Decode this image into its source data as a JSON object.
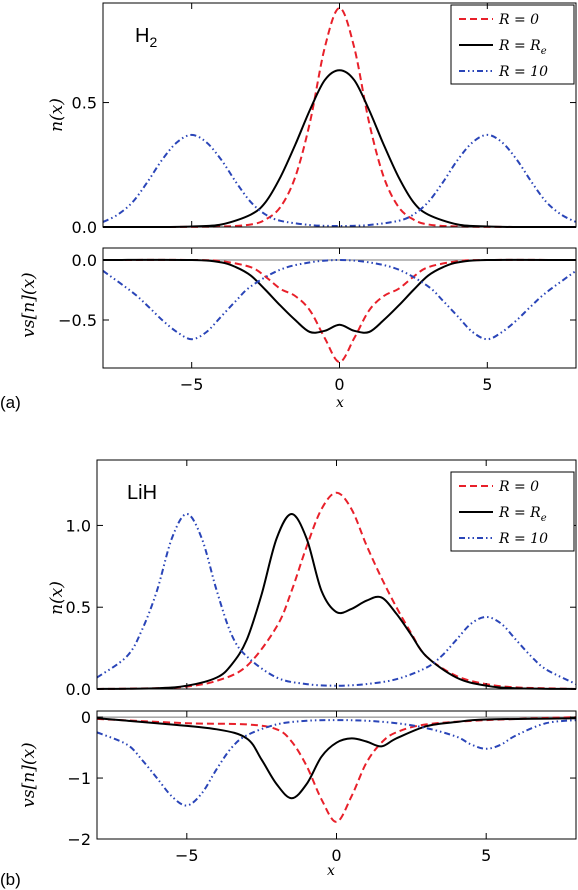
{
  "panels": [
    {
      "tag": "(a)",
      "molecule": "H",
      "molecule_sub": "2",
      "x_label": "x",
      "x_ticks": [
        "−5",
        "0",
        "5"
      ],
      "x_tick_values": [
        -5,
        0,
        5
      ],
      "legend": [
        {
          "label": "R = 0",
          "color": "#e8202a",
          "dash": "dashed"
        },
        {
          "label": "R = R",
          "sub": "e",
          "color": "#000000",
          "dash": "solid"
        },
        {
          "label": "R = 10",
          "color": "#2a45b8",
          "dash": "dashdotdot"
        }
      ]
    },
    {
      "tag": "(b)",
      "molecule": "LiH",
      "molecule_sub": "",
      "x_label": "x",
      "x_ticks": [
        "−5",
        "0",
        "5"
      ],
      "x_tick_values": [
        -5,
        0,
        5
      ],
      "legend": [
        {
          "label": "R = 0",
          "color": "#e8202a",
          "dash": "dashed"
        },
        {
          "label": "R = R",
          "sub": "e",
          "color": "#000000",
          "dash": "solid"
        },
        {
          "label": "R = 10",
          "color": "#2a45b8",
          "dash": "dashdotdot"
        }
      ]
    }
  ],
  "chart_data": [
    {
      "type": "line",
      "panel": "(a) top",
      "ylabel": "n(x)",
      "xlim": [
        -8,
        8
      ],
      "ylim": [
        0,
        0.9
      ],
      "y_ticks": [
        "0.0",
        "0.5"
      ],
      "y_tick_values": [
        0,
        0.5
      ],
      "series": [
        {
          "name": "R = 0",
          "x": [
            -8,
            -6,
            -4,
            -3,
            -2.5,
            -2,
            -1.5,
            -1,
            -0.5,
            0,
            0.5,
            1,
            1.5,
            2,
            2.5,
            3,
            4,
            6,
            8
          ],
          "y": [
            0,
            0,
            0.002,
            0.01,
            0.03,
            0.08,
            0.2,
            0.42,
            0.72,
            0.88,
            0.72,
            0.42,
            0.2,
            0.08,
            0.03,
            0.01,
            0.002,
            0,
            0
          ]
        },
        {
          "name": "R = Re",
          "x": [
            -8,
            -6,
            -5,
            -4,
            -3,
            -2.5,
            -2,
            -1.5,
            -1,
            -0.5,
            0,
            0.5,
            1,
            1.5,
            2,
            2.5,
            3,
            4,
            5,
            6,
            8
          ],
          "y": [
            0,
            0,
            0.002,
            0.01,
            0.05,
            0.1,
            0.2,
            0.33,
            0.47,
            0.59,
            0.63,
            0.59,
            0.47,
            0.33,
            0.2,
            0.1,
            0.05,
            0.01,
            0.002,
            0,
            0
          ]
        },
        {
          "name": "R = 10",
          "x": [
            -8,
            -7.5,
            -7,
            -6.5,
            -6,
            -5.5,
            -5,
            -4.5,
            -4,
            -3.5,
            -3,
            -2.5,
            -2,
            -1,
            0,
            1,
            2,
            2.5,
            3,
            3.5,
            4,
            4.5,
            5,
            5.5,
            6,
            6.5,
            7,
            7.5,
            8
          ],
          "y": [
            0.02,
            0.05,
            0.1,
            0.18,
            0.27,
            0.34,
            0.37,
            0.34,
            0.27,
            0.18,
            0.1,
            0.05,
            0.025,
            0.008,
            0.004,
            0.008,
            0.025,
            0.05,
            0.1,
            0.18,
            0.27,
            0.34,
            0.37,
            0.34,
            0.27,
            0.18,
            0.1,
            0.05,
            0.02
          ]
        }
      ]
    },
    {
      "type": "line",
      "panel": "(a) bottom",
      "ylabel": "vs[n](x)",
      "xlim": [
        -8,
        8
      ],
      "ylim": [
        -0.9,
        0.1
      ],
      "y_ticks": [
        "0.0",
        "−0.5"
      ],
      "y_tick_values": [
        0,
        -0.5
      ],
      "series": [
        {
          "name": "R = 0",
          "x": [
            -8,
            -5,
            -4,
            -3,
            -2.5,
            -2,
            -1.5,
            -1,
            -0.5,
            0,
            0.5,
            1,
            1.5,
            2,
            2.5,
            3,
            4,
            5,
            8
          ],
          "y": [
            0,
            0,
            -0.01,
            -0.06,
            -0.14,
            -0.24,
            -0.3,
            -0.42,
            -0.65,
            -0.85,
            -0.65,
            -0.42,
            -0.3,
            -0.24,
            -0.14,
            -0.06,
            -0.01,
            0,
            0
          ]
        },
        {
          "name": "R = Re",
          "x": [
            -8,
            -5,
            -4,
            -3.5,
            -3,
            -2.5,
            -2,
            -1.5,
            -1,
            -0.5,
            0,
            0.5,
            1,
            1.5,
            2,
            2.5,
            3,
            3.5,
            4,
            5,
            8
          ],
          "y": [
            0,
            0,
            -0.02,
            -0.06,
            -0.13,
            -0.25,
            -0.38,
            -0.5,
            -0.6,
            -0.59,
            -0.54,
            -0.59,
            -0.6,
            -0.5,
            -0.38,
            -0.25,
            -0.13,
            -0.06,
            -0.02,
            0,
            0
          ]
        },
        {
          "name": "R = 10",
          "x": [
            -8,
            -7,
            -6.5,
            -6,
            -5.5,
            -5,
            -4.5,
            -4,
            -3.5,
            -3,
            -2,
            -1,
            0,
            1,
            2,
            3,
            3.5,
            4,
            4.5,
            5,
            5.5,
            6,
            6.5,
            7,
            8
          ],
          "y": [
            -0.09,
            -0.27,
            -0.38,
            -0.5,
            -0.6,
            -0.66,
            -0.6,
            -0.47,
            -0.34,
            -0.22,
            -0.08,
            -0.02,
            0,
            -0.02,
            -0.08,
            -0.22,
            -0.34,
            -0.47,
            -0.6,
            -0.66,
            -0.6,
            -0.5,
            -0.38,
            -0.27,
            -0.09
          ]
        }
      ]
    },
    {
      "type": "line",
      "panel": "(b) top",
      "ylabel": "n(x)",
      "xlim": [
        -8,
        8
      ],
      "ylim": [
        0,
        1.4
      ],
      "y_ticks": [
        "0.0",
        "0.5",
        "1.0"
      ],
      "y_tick_values": [
        0,
        0.5,
        1.0
      ],
      "series": [
        {
          "name": "R = 0",
          "x": [
            -8,
            -6,
            -5,
            -4,
            -3,
            -2,
            -1.5,
            -1,
            -0.5,
            0,
            0.5,
            1,
            1.5,
            2,
            2.5,
            3,
            4,
            5,
            6,
            8
          ],
          "y": [
            0,
            0.005,
            0.015,
            0.05,
            0.14,
            0.38,
            0.6,
            0.87,
            1.1,
            1.2,
            1.1,
            0.88,
            0.68,
            0.5,
            0.34,
            0.2,
            0.08,
            0.03,
            0.01,
            0
          ]
        },
        {
          "name": "R = Re",
          "x": [
            -8,
            -6,
            -5,
            -4,
            -3.5,
            -3,
            -2.5,
            -2,
            -1.5,
            -1,
            -0.5,
            0,
            0.5,
            1,
            1.5,
            2,
            2.5,
            3,
            4,
            5,
            6,
            8
          ],
          "y": [
            0,
            0.005,
            0.02,
            0.07,
            0.15,
            0.3,
            0.58,
            0.92,
            1.07,
            0.92,
            0.6,
            0.47,
            0.49,
            0.54,
            0.56,
            0.46,
            0.33,
            0.2,
            0.07,
            0.02,
            0.005,
            0
          ]
        },
        {
          "name": "R = 10",
          "x": [
            -8,
            -7,
            -6.5,
            -6,
            -5.5,
            -5,
            -4.5,
            -4,
            -3.5,
            -3,
            -2,
            -1,
            0,
            1,
            2,
            3,
            3.5,
            4,
            4.5,
            5,
            5.5,
            6,
            6.5,
            7,
            8
          ],
          "y": [
            0.07,
            0.2,
            0.36,
            0.6,
            0.92,
            1.07,
            0.92,
            0.6,
            0.33,
            0.2,
            0.07,
            0.03,
            0.02,
            0.03,
            0.06,
            0.13,
            0.2,
            0.3,
            0.4,
            0.44,
            0.4,
            0.3,
            0.2,
            0.12,
            0.03
          ]
        }
      ]
    },
    {
      "type": "line",
      "panel": "(b) bottom",
      "ylabel": "vs[n](x)",
      "xlim": [
        -8,
        8
      ],
      "ylim": [
        -2,
        0.1
      ],
      "y_ticks": [
        "0",
        "−1",
        "−2"
      ],
      "y_tick_values": [
        0,
        -1,
        -2
      ],
      "series": [
        {
          "name": "R = 0",
          "x": [
            -8,
            -5,
            -3,
            -2,
            -1.5,
            -1,
            -0.5,
            0,
            0.5,
            1,
            1.5,
            2,
            3,
            5,
            8
          ],
          "y": [
            -0.03,
            -0.1,
            -0.12,
            -0.2,
            -0.4,
            -0.8,
            -1.35,
            -1.72,
            -1.3,
            -0.75,
            -0.42,
            -0.25,
            -0.12,
            -0.05,
            0
          ]
        },
        {
          "name": "R = Re",
          "x": [
            -8,
            -6,
            -4,
            -3,
            -2.5,
            -2,
            -1.5,
            -1,
            -0.5,
            0,
            0.5,
            1,
            1.5,
            2,
            3,
            4,
            5,
            8
          ],
          "y": [
            -0.02,
            -0.1,
            -0.2,
            -0.35,
            -0.7,
            -1.1,
            -1.33,
            -1.1,
            -0.65,
            -0.42,
            -0.35,
            -0.4,
            -0.48,
            -0.35,
            -0.15,
            -0.08,
            -0.04,
            -0.02
          ]
        },
        {
          "name": "R = 10",
          "x": [
            -8,
            -7,
            -6.5,
            -6,
            -5.5,
            -5,
            -4.5,
            -4,
            -3.5,
            -3,
            -2,
            -1,
            0,
            1,
            2,
            3,
            4,
            4.5,
            5,
            5.5,
            6,
            7,
            8
          ],
          "y": [
            -0.25,
            -0.45,
            -0.7,
            -1.0,
            -1.3,
            -1.45,
            -1.25,
            -0.85,
            -0.5,
            -0.3,
            -0.12,
            -0.06,
            -0.05,
            -0.06,
            -0.1,
            -0.18,
            -0.32,
            -0.45,
            -0.52,
            -0.45,
            -0.3,
            -0.1,
            -0.05
          ]
        }
      ]
    }
  ]
}
